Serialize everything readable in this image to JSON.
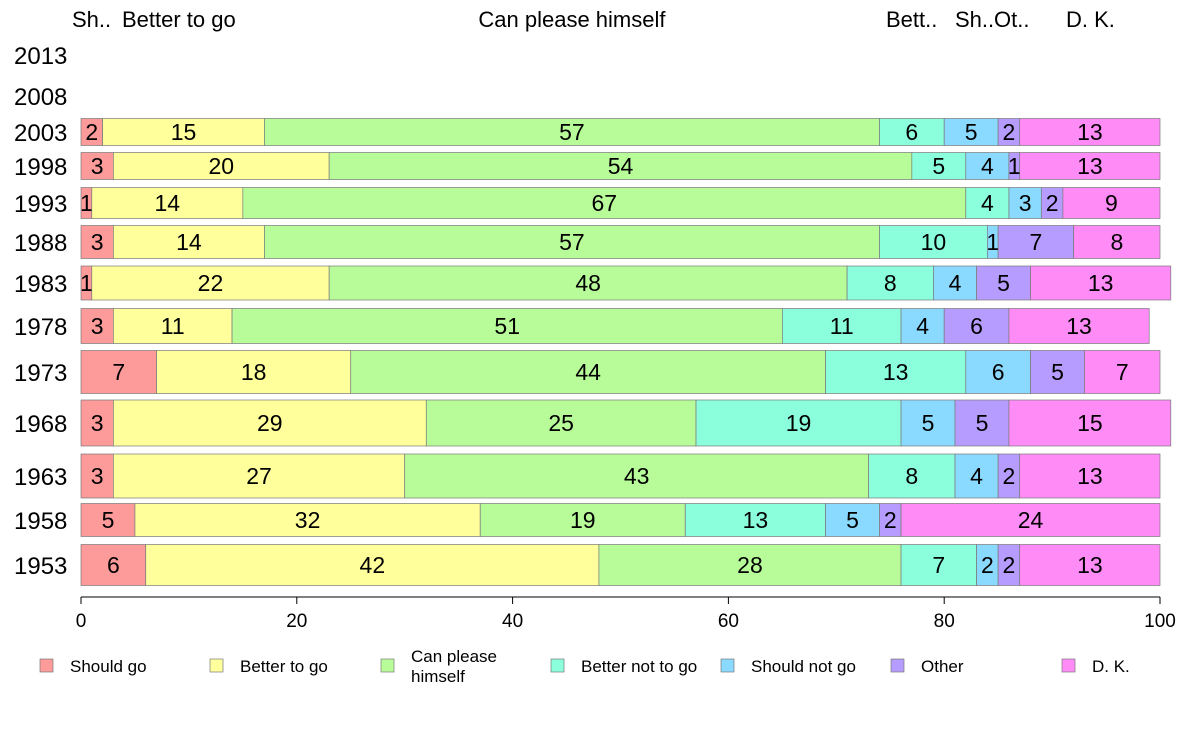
{
  "chart_data": {
    "type": "bar",
    "orientation": "horizontal",
    "stacked": true,
    "xlim": [
      0,
      100
    ],
    "x_ticks": [
      0,
      20,
      40,
      60,
      80,
      100
    ],
    "categories": [
      "2013",
      "2008",
      "2003",
      "1998",
      "1993",
      "1988",
      "1983",
      "1978",
      "1973",
      "1968",
      "1963",
      "1958",
      "1953"
    ],
    "top_labels": [
      "Sh..",
      "Better to go",
      "Can please himself",
      "Bett..",
      "Sh..",
      "Ot..",
      "D. K."
    ],
    "series": [
      {
        "name": "Should go",
        "color": "#fd9a9a",
        "values": [
          null,
          null,
          2,
          3,
          1,
          3,
          1,
          3,
          7,
          3,
          3,
          5,
          6
        ]
      },
      {
        "name": "Better to go",
        "color": "#ffff9c",
        "values": [
          null,
          null,
          15,
          20,
          14,
          14,
          22,
          11,
          18,
          29,
          27,
          32,
          42
        ]
      },
      {
        "name": "Can please himself",
        "color": "#b8fc9a",
        "values": [
          null,
          null,
          57,
          54,
          67,
          57,
          48,
          51,
          44,
          25,
          43,
          19,
          28
        ]
      },
      {
        "name": "Better not to go",
        "color": "#8bffdb",
        "values": [
          null,
          null,
          6,
          5,
          4,
          10,
          8,
          11,
          13,
          19,
          8,
          13,
          7
        ]
      },
      {
        "name": "Should not go",
        "color": "#8ad9ff",
        "values": [
          null,
          null,
          5,
          4,
          3,
          1,
          4,
          4,
          6,
          5,
          4,
          5,
          2
        ]
      },
      {
        "name": "Other",
        "color": "#b59cfe",
        "values": [
          null,
          null,
          2,
          1,
          2,
          7,
          5,
          6,
          5,
          5,
          2,
          2,
          2
        ]
      },
      {
        "name": "D. K.",
        "color": "#ff8bf7",
        "values": [
          null,
          null,
          13,
          13,
          9,
          8,
          13,
          13,
          7,
          15,
          13,
          24,
          13
        ]
      }
    ],
    "legend": {
      "placement": "bottom",
      "items": [
        {
          "label": [
            "Should go"
          ],
          "color": "#fd9a9a"
        },
        {
          "label": [
            "Better to go"
          ],
          "color": "#ffff9c"
        },
        {
          "label": [
            "Can please",
            "himself"
          ],
          "color": "#b8fc9a"
        },
        {
          "label": [
            "Better not to go"
          ],
          "color": "#8bffdb"
        },
        {
          "label": [
            "Should not go"
          ],
          "color": "#8ad9ff"
        },
        {
          "label": [
            "Other"
          ],
          "color": "#b59cfe"
        },
        {
          "label": [
            "D. K."
          ],
          "color": "#ff8bf7"
        }
      ]
    },
    "grid": false
  }
}
